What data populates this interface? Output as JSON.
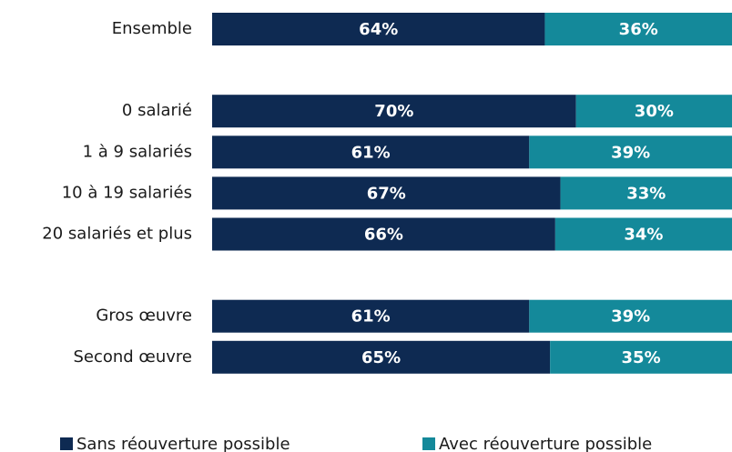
{
  "chart_data": {
    "type": "stacked_bar_horizontal",
    "categories": [
      "Ensemble",
      null,
      "0 salarié",
      "1 à 9 salariés",
      "10 à 19 salariés",
      "20 salariés et plus",
      null,
      "Gros œuvre",
      "Second œuvre"
    ],
    "series": [
      {
        "name": "Sans réouverture possible",
        "color": "#0e2a52",
        "values": [
          64,
          null,
          70,
          61,
          67,
          66,
          null,
          61,
          65
        ],
        "value_labels": [
          "64%",
          null,
          "70%",
          "61%",
          "67%",
          "66%",
          null,
          "61%",
          "65%"
        ]
      },
      {
        "name": "Avec réouverture possible",
        "color": "#14899a",
        "values": [
          36,
          null,
          30,
          39,
          33,
          34,
          null,
          39,
          35
        ],
        "value_labels": [
          "36%",
          null,
          "30%",
          "39%",
          "33%",
          "34%",
          null,
          "39%",
          "35%"
        ]
      }
    ],
    "xlim": [
      0,
      100
    ],
    "legend": "bottom"
  }
}
